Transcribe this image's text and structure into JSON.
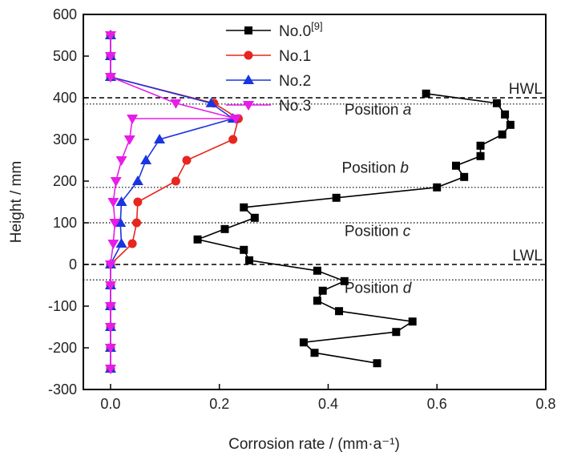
{
  "chart_data": {
    "type": "line",
    "xlabel": "Corrosion rate / (mm·a⁻¹)",
    "ylabel": "Height / mm",
    "xlim": [
      -0.05,
      0.8
    ],
    "ylim": [
      -300,
      600
    ],
    "x_ticks": [
      "0.0",
      "0.2",
      "0.4",
      "0.6",
      "0.8"
    ],
    "y_ticks": [
      "-300",
      "-200",
      "-100",
      "0",
      "100",
      "200",
      "300",
      "400",
      "500",
      "600"
    ],
    "legend_position": "top-center",
    "series": [
      {
        "name": "No.0",
        "name_sup": "[9]",
        "color": "#000000",
        "marker": "square",
        "points": [
          [
            0.58,
            410
          ],
          [
            0.71,
            387
          ],
          [
            0.725,
            360
          ],
          [
            0.735,
            335
          ],
          [
            0.72,
            312
          ],
          [
            0.68,
            285
          ],
          [
            0.68,
            260
          ],
          [
            0.635,
            237
          ],
          [
            0.65,
            210
          ],
          [
            0.6,
            185
          ],
          [
            0.415,
            160
          ],
          [
            0.245,
            137
          ],
          [
            0.265,
            112
          ],
          [
            0.21,
            85
          ],
          [
            0.16,
            60
          ],
          [
            0.245,
            35
          ],
          [
            0.255,
            10
          ],
          [
            0.38,
            -15
          ],
          [
            0.43,
            -40
          ],
          [
            0.39,
            -63
          ],
          [
            0.38,
            -87
          ],
          [
            0.42,
            -112
          ],
          [
            0.555,
            -137
          ],
          [
            0.525,
            -162
          ],
          [
            0.355,
            -187
          ],
          [
            0.375,
            -212
          ],
          [
            0.49,
            -237
          ]
        ]
      },
      {
        "name": "No.1",
        "color": "#e8251e",
        "marker": "circle",
        "points": [
          [
            0.0,
            550
          ],
          [
            0.0,
            500
          ],
          [
            0.0,
            450
          ],
          [
            0.19,
            387
          ],
          [
            0.235,
            350
          ],
          [
            0.225,
            300
          ],
          [
            0.14,
            250
          ],
          [
            0.12,
            200
          ],
          [
            0.05,
            150
          ],
          [
            0.048,
            100
          ],
          [
            0.04,
            50
          ],
          [
            0.0,
            0
          ],
          [
            0.0,
            -50
          ],
          [
            0.0,
            -100
          ],
          [
            0.0,
            -150
          ],
          [
            0.0,
            -200
          ],
          [
            0.0,
            -250
          ]
        ]
      },
      {
        "name": "No.2",
        "color": "#1a35e0",
        "marker": "triangle-up",
        "points": [
          [
            0.0,
            550
          ],
          [
            0.0,
            500
          ],
          [
            0.0,
            450
          ],
          [
            0.185,
            387
          ],
          [
            0.225,
            350
          ],
          [
            0.09,
            300
          ],
          [
            0.065,
            250
          ],
          [
            0.05,
            200
          ],
          [
            0.02,
            150
          ],
          [
            0.018,
            100
          ],
          [
            0.02,
            50
          ],
          [
            0.0,
            0
          ],
          [
            0.0,
            -50
          ],
          [
            0.0,
            -100
          ],
          [
            0.0,
            -150
          ],
          [
            0.0,
            -200
          ],
          [
            0.0,
            -250
          ]
        ]
      },
      {
        "name": "No.3",
        "color": "#e81ce8",
        "marker": "triangle-down",
        "points": [
          [
            0.0,
            550
          ],
          [
            0.0,
            500
          ],
          [
            0.0,
            450
          ],
          [
            0.12,
            387
          ],
          [
            0.23,
            350
          ],
          [
            0.04,
            350
          ],
          [
            0.035,
            300
          ],
          [
            0.02,
            250
          ],
          [
            0.01,
            200
          ],
          [
            0.005,
            150
          ],
          [
            0.008,
            100
          ],
          [
            0.005,
            50
          ],
          [
            0.0,
            0
          ],
          [
            0.0,
            -50
          ],
          [
            0.0,
            -100
          ],
          [
            0.0,
            -150
          ],
          [
            0.0,
            -200
          ],
          [
            0.0,
            -250
          ]
        ]
      }
    ],
    "reference_lines": [
      {
        "y": 400,
        "style": "dashed",
        "label": "HWL"
      },
      {
        "y": 0,
        "style": "dashed",
        "label": "LWL"
      },
      {
        "y": 385,
        "style": "dotted",
        "label": ""
      },
      {
        "y": 185,
        "style": "dotted",
        "label": ""
      },
      {
        "y": 100,
        "style": "dotted",
        "label": ""
      },
      {
        "y": -37,
        "style": "dotted",
        "label": ""
      }
    ],
    "annotations": [
      {
        "prefix": "Position ",
        "var": "a",
        "x": 0.43,
        "y": 360
      },
      {
        "prefix": "Position ",
        "var": "b",
        "x": 0.425,
        "y": 220
      },
      {
        "prefix": "Position ",
        "var": "c",
        "x": 0.43,
        "y": 68
      },
      {
        "prefix": "Position ",
        "var": "d",
        "x": 0.43,
        "y": -68
      }
    ]
  }
}
